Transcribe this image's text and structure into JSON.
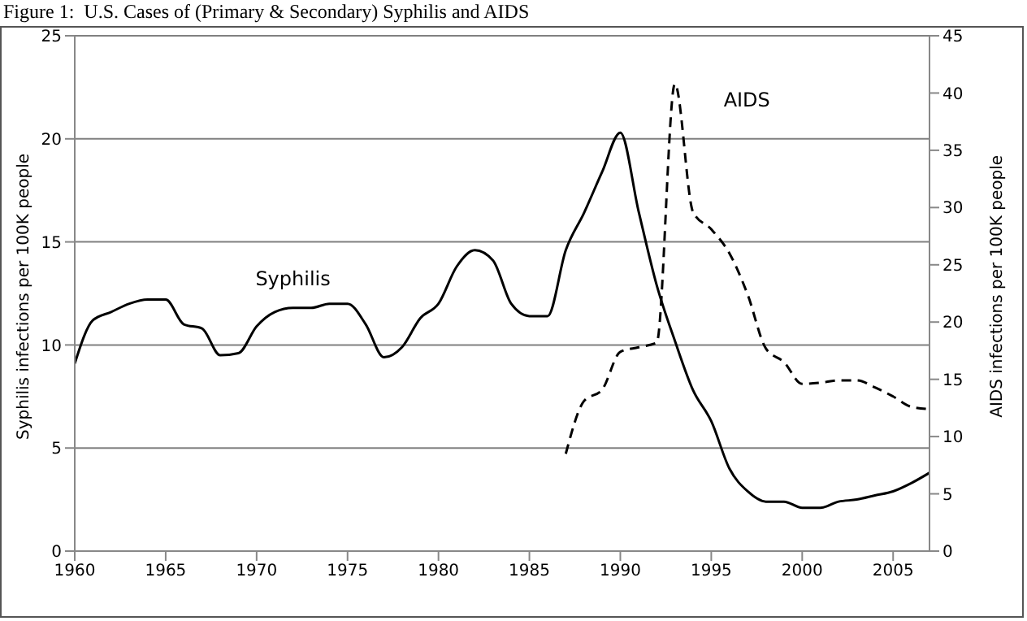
{
  "chart_data": {
    "type": "line",
    "title": "Figure 1:  U.S. Cases of (Primary & Secondary) Syphilis and AIDS",
    "ylabel": "Syphilis infections per 100K people",
    "y2label": "AIDS infections per 100K people",
    "xlim": [
      1960,
      2007
    ],
    "xticks": [
      1960,
      1965,
      1970,
      1975,
      1980,
      1985,
      1990,
      1995,
      2000,
      2005
    ],
    "ylim": [
      0,
      25
    ],
    "yticks": [
      0,
      5,
      10,
      15,
      20,
      25
    ],
    "y2lim": [
      0,
      45
    ],
    "y2ticks": [
      0,
      5,
      10,
      15,
      20,
      25,
      30,
      35,
      40,
      45
    ],
    "grid": "y",
    "marker": "none",
    "series": [
      {
        "name": "Syphilis",
        "color": "#000000",
        "line_style": "solid",
        "x": [
          1960,
          1961,
          1962,
          1963,
          1964,
          1965,
          1966,
          1967,
          1968,
          1969,
          1970,
          1971,
          1972,
          1973,
          1974,
          1975,
          1976,
          1977,
          1978,
          1979,
          1980,
          1981,
          1982,
          1983,
          1984,
          1985,
          1986,
          1987,
          1988,
          1989,
          1990,
          1991,
          1992,
          1993,
          1994,
          1995,
          1996,
          1997,
          1998,
          1999,
          2000,
          2001,
          2002,
          2003,
          2004,
          2005,
          2006,
          2007
        ],
        "values": [
          9.1,
          11.2,
          11.6,
          12.0,
          12.2,
          12.2,
          11.0,
          10.8,
          9.5,
          9.6,
          10.9,
          11.6,
          11.8,
          11.8,
          12.0,
          12.0,
          11.0,
          9.4,
          9.9,
          11.3,
          12.0,
          13.8,
          14.6,
          14.1,
          12.0,
          11.4,
          11.4,
          14.6,
          16.4,
          18.4,
          20.3,
          16.5,
          12.9,
          10.2,
          7.8,
          6.3,
          4.0,
          2.9,
          2.4,
          2.4,
          2.1,
          2.1,
          2.4,
          2.5,
          2.7,
          2.9,
          3.3,
          3.8
        ]
      },
      {
        "name": "AIDS",
        "color": "#000000",
        "line_style": "dashed",
        "axis": "y2",
        "x": [
          1987,
          1988,
          1989,
          1990,
          1991,
          1992,
          1993,
          1994,
          1995,
          1996,
          1997,
          1998,
          1999,
          2000,
          2001,
          2002,
          2003,
          2004,
          2005,
          2006,
          2007
        ],
        "values": [
          8.5,
          13.1,
          14.1,
          17.4,
          17.8,
          18.2,
          40.8,
          29.6,
          28.1,
          26.0,
          22.4,
          17.7,
          16.5,
          14.6,
          14.7,
          14.9,
          14.9,
          14.3,
          13.5,
          12.6,
          12.4
        ]
      }
    ]
  }
}
